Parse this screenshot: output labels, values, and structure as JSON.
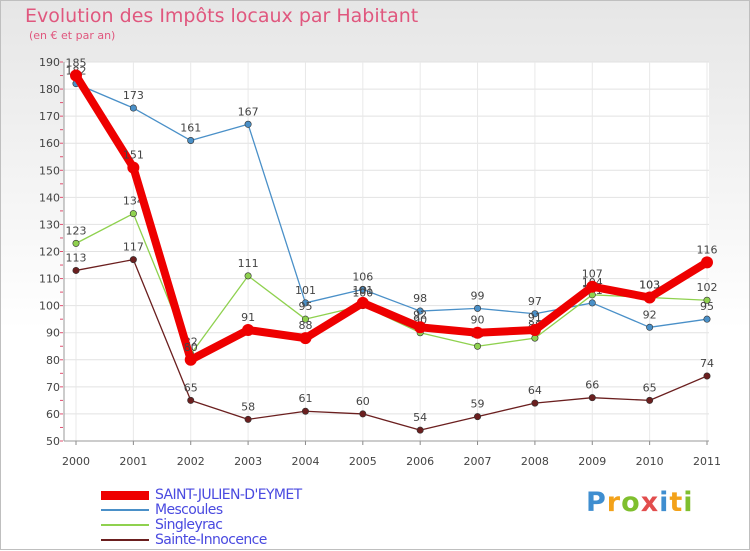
{
  "header": {
    "title": "Evolution des Impôts locaux par Habitant",
    "subtitle": "(en € et par an)"
  },
  "chart_data": {
    "type": "line",
    "title": "Evolution des Impôts locaux par Habitant",
    "subtitle": "(en € et par an)",
    "xlabel": "",
    "ylabel": "",
    "ylim": [
      50,
      190
    ],
    "yticks": [
      "50",
      "60",
      "70",
      "80",
      "90",
      "100",
      "110",
      "120",
      "130",
      "140",
      "150",
      "160",
      "170",
      "180",
      "190"
    ],
    "x": [
      "2000",
      "2001",
      "2002",
      "2003",
      "2004",
      "2005",
      "2006",
      "2007",
      "2008",
      "2009",
      "2010",
      "2011"
    ],
    "grid": true,
    "legend_position": "bottom-left",
    "series": [
      {
        "name": "Mescoules",
        "color": "#4a90c8",
        "values": [
          182,
          173,
          161,
          167,
          101,
          106,
          98,
          99,
          97,
          101,
          92,
          95
        ]
      },
      {
        "name": "Singleyrac",
        "color": "#8fd14f",
        "values": [
          123,
          134,
          82,
          111,
          95,
          100,
          90,
          85,
          88,
          104,
          103,
          102
        ]
      },
      {
        "name": "Sainte-Innocence",
        "color": "#6b1f1f",
        "values": [
          113,
          117,
          65,
          58,
          61,
          60,
          54,
          59,
          64,
          66,
          65,
          74
        ]
      },
      {
        "name": "SAINT-JULIEN-D'EYMET",
        "color": "#ee0000",
        "values": [
          185,
          151,
          80,
          91,
          88,
          101,
          92,
          90,
          91,
          107,
          103,
          116
        ]
      }
    ],
    "data_labels": {
      "Mescoules": [
        "182",
        "173",
        "161",
        "167",
        "101",
        "106",
        "98",
        "99",
        "97",
        "101",
        "92",
        "95"
      ],
      "Singleyrac": [
        "123",
        "134",
        "82",
        "111",
        "95",
        "100",
        "90",
        "85",
        "88",
        "104",
        "103",
        "102"
      ],
      "Sainte-Innocence": [
        "113",
        "117",
        "65",
        "58",
        "61",
        "60",
        "54",
        "59",
        "64",
        "66",
        "65",
        "74"
      ],
      "SAINT-JULIEN-D'EYMET": [
        "185",
        "151",
        "80",
        "91",
        "88",
        "101",
        "92",
        "90",
        "91",
        "107",
        "103",
        "116"
      ]
    }
  },
  "legend": {
    "items": [
      {
        "label": "SAINT-JULIEN-D'EYMET",
        "color": "#ee0000"
      },
      {
        "label": "Mescoules",
        "color": "#4a90c8"
      },
      {
        "label": "Singleyrac",
        "color": "#8fd14f"
      },
      {
        "label": "Sainte-Innocence",
        "color": "#6b1f1f"
      }
    ]
  },
  "logo": {
    "text": "Proxiti"
  }
}
